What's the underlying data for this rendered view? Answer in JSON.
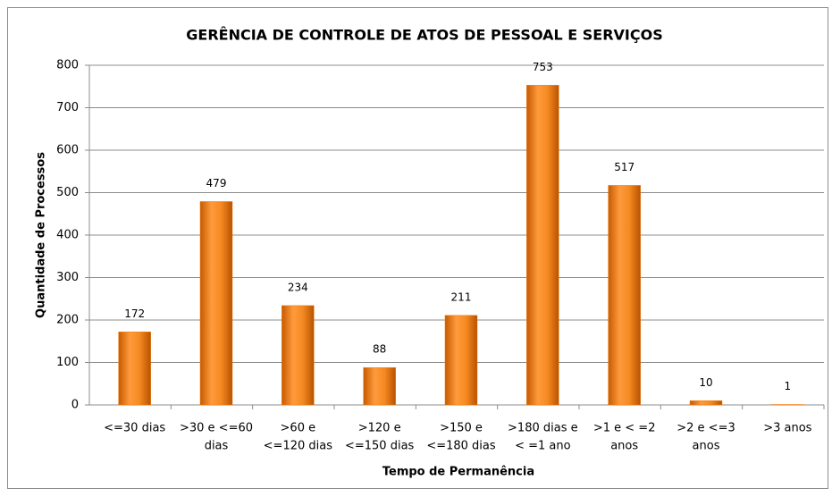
{
  "chart_data": {
    "type": "bar",
    "title": "GERÊNCIA DE CONTROLE DE ATOS DE PESSOAL E SERVIÇOS",
    "x_label": "Tempo de Permanência",
    "y_label": "Quantidade de Processos",
    "categories": [
      [
        "<=30 dias"
      ],
      [
        ">30 e <=60",
        "dias"
      ],
      [
        ">60 e",
        "<=120 dias"
      ],
      [
        ">120 e",
        "<=150 dias"
      ],
      [
        ">150 e",
        "<=180 dias"
      ],
      [
        ">180 dias e",
        "< =1 ano"
      ],
      [
        ">1 e < =2",
        "anos"
      ],
      [
        ">2 e <=3",
        "anos"
      ],
      [
        ">3 anos"
      ]
    ],
    "values": [
      172,
      479,
      234,
      88,
      211,
      753,
      517,
      10,
      1
    ],
    "color": "#f07c0c",
    "ylim": [
      0,
      800
    ],
    "yticks": [
      0,
      100,
      200,
      300,
      400,
      500,
      600,
      700,
      800
    ],
    "grid": true
  }
}
